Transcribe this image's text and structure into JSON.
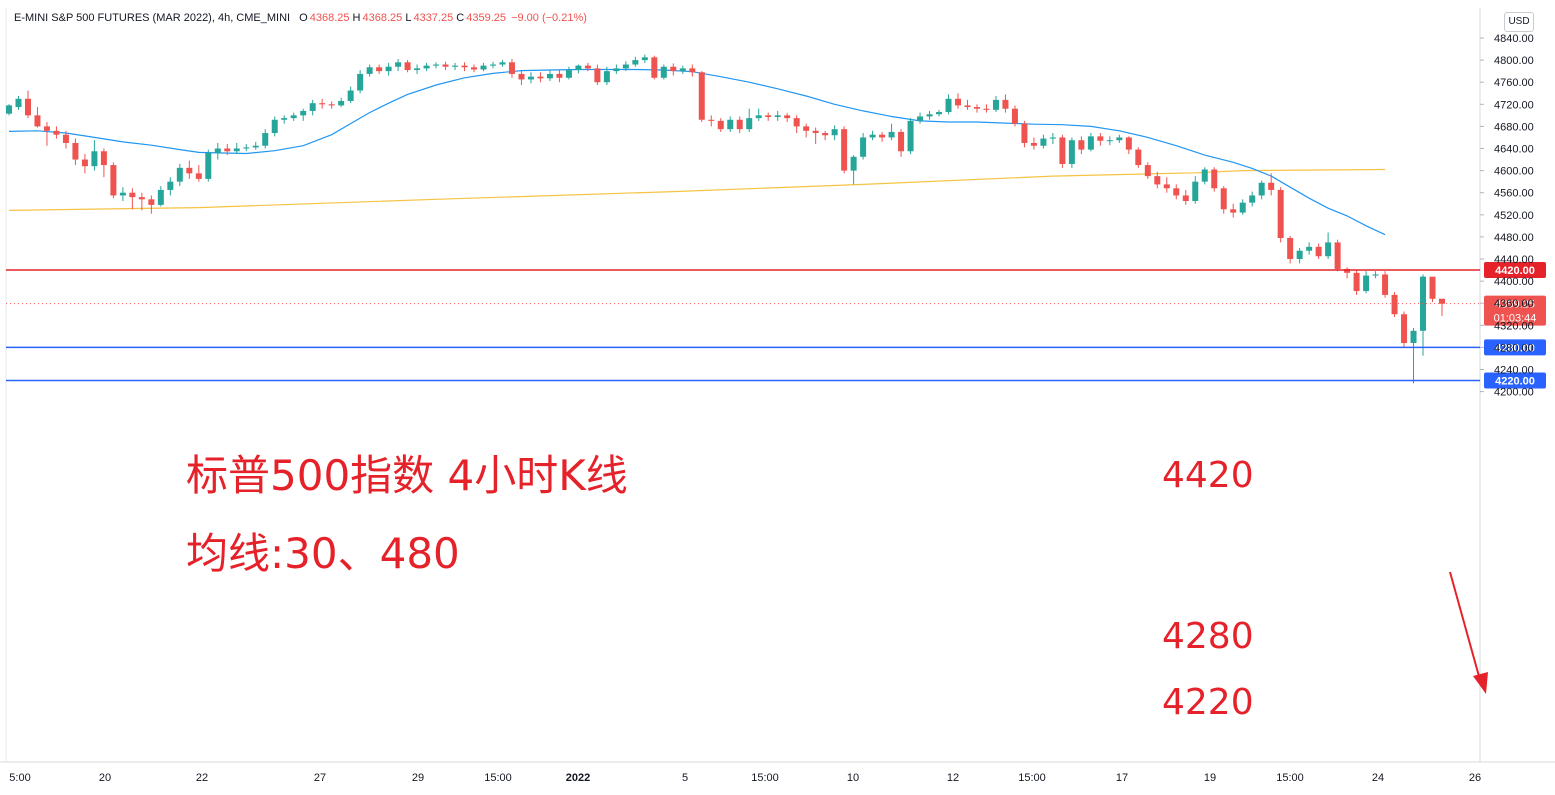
{
  "header": {
    "symbol": "E-MINI S&P 500 FUTURES (MAR 2022), 4h, CME_MINI",
    "open_label": "O",
    "open": "4368.25",
    "high_label": "H",
    "high": "4368.25",
    "low_label": "L",
    "low": "4337.25",
    "close_label": "C",
    "close": "4359.25",
    "change": "−9.00 (−0.21%)"
  },
  "currency_button": "USD",
  "annotations": {
    "title_line1": "标普500指数 4小时K线",
    "title_line2": "均线:30、480",
    "level_4420": "4420",
    "level_4280": "4280",
    "level_4220": "4220"
  },
  "colors": {
    "up": "#26a69a",
    "down": "#ef5350",
    "ma30": "#2196f3",
    "ma480": "#f5c342",
    "resistance_line": "#e5222a",
    "support_line": "#2962ff",
    "annotation_text": "#e5222a"
  },
  "chart_data": {
    "type": "candlestick",
    "title": "E-MINI S&P 500 FUTURES (MAR 2022), 4h, CME_MINI",
    "ylim": [
      4190,
      4850
    ],
    "y_ticks": [
      4200,
      4240,
      4280,
      4320,
      4360,
      4400,
      4440,
      4480,
      4520,
      4560,
      4600,
      4640,
      4680,
      4720,
      4760,
      4800,
      4840
    ],
    "x_ticks": [
      "5:00",
      "20",
      "22",
      "27",
      "29",
      "15:00",
      "2022",
      "5",
      "15:00",
      "10",
      "12",
      "15:00",
      "17",
      "19",
      "15:00",
      "24",
      "26"
    ],
    "last_price": "4359.25",
    "countdown": "01:03:44",
    "horizontal_levels": [
      {
        "value": 4420,
        "label": "4420.00",
        "kind": "resistance"
      },
      {
        "value": 4280,
        "label": "4280.00",
        "kind": "support"
      },
      {
        "value": 4220,
        "label": "4220.00",
        "kind": "support"
      }
    ],
    "candles": [
      [
        4703,
        4718,
        4700,
        4720
      ],
      [
        4715,
        4730,
        4710,
        4735
      ],
      [
        4730,
        4700,
        4695,
        4745
      ],
      [
        4700,
        4680,
        4678,
        4715
      ],
      [
        4680,
        4672,
        4645,
        4688
      ],
      [
        4672,
        4665,
        4658,
        4680
      ],
      [
        4665,
        4650,
        4640,
        4672
      ],
      [
        4650,
        4620,
        4610,
        4658
      ],
      [
        4620,
        4608,
        4595,
        4630
      ],
      [
        4608,
        4635,
        4600,
        4655
      ],
      [
        4635,
        4610,
        4588,
        4640
      ],
      [
        4610,
        4555,
        4550,
        4615
      ],
      [
        4555,
        4560,
        4545,
        4570
      ],
      [
        4560,
        4552,
        4530,
        4568
      ],
      [
        4552,
        4548,
        4528,
        4560
      ],
      [
        4548,
        4538,
        4522,
        4555
      ],
      [
        4538,
        4565,
        4535,
        4572
      ],
      [
        4565,
        4580,
        4555,
        4588
      ],
      [
        4580,
        4605,
        4572,
        4612
      ],
      [
        4605,
        4595,
        4585,
        4618
      ],
      [
        4595,
        4585,
        4580,
        4610
      ],
      [
        4585,
        4632,
        4580,
        4638
      ],
      [
        4632,
        4640,
        4620,
        4650
      ],
      [
        4640,
        4635,
        4628,
        4648
      ],
      [
        4635,
        4640,
        4630,
        4650
      ],
      [
        4640,
        4642,
        4635,
        4648
      ],
      [
        4642,
        4645,
        4638,
        4652
      ],
      [
        4645,
        4668,
        4640,
        4675
      ],
      [
        4668,
        4692,
        4662,
        4698
      ],
      [
        4692,
        4695,
        4685,
        4700
      ],
      [
        4695,
        4700,
        4690,
        4705
      ],
      [
        4700,
        4708,
        4690,
        4712
      ],
      [
        4708,
        4722,
        4700,
        4728
      ],
      [
        4722,
        4720,
        4712,
        4730
      ],
      [
        4720,
        4718,
        4712,
        4725
      ],
      [
        4718,
        4726,
        4715,
        4732
      ],
      [
        4726,
        4745,
        4722,
        4752
      ],
      [
        4745,
        4775,
        4740,
        4782
      ],
      [
        4775,
        4787,
        4770,
        4792
      ],
      [
        4787,
        4780,
        4775,
        4792
      ],
      [
        4780,
        4788,
        4772,
        4795
      ],
      [
        4788,
        4796,
        4780,
        4802
      ],
      [
        4796,
        4782,
        4778,
        4800
      ],
      [
        4782,
        4785,
        4775,
        4792
      ],
      [
        4785,
        4790,
        4780,
        4795
      ],
      [
        4790,
        4792,
        4785,
        4796
      ],
      [
        4792,
        4788,
        4782,
        4797
      ],
      [
        4788,
        4790,
        4782,
        4795
      ],
      [
        4790,
        4787,
        4780,
        4796
      ],
      [
        4787,
        4783,
        4778,
        4792
      ],
      [
        4783,
        4790,
        4780,
        4795
      ],
      [
        4790,
        4792,
        4785,
        4797
      ],
      [
        4792,
        4796,
        4788,
        4800
      ],
      [
        4796,
        4775,
        4768,
        4802
      ],
      [
        4775,
        4765,
        4755,
        4780
      ],
      [
        4765,
        4770,
        4758,
        4778
      ],
      [
        4770,
        4767,
        4760,
        4778
      ],
      [
        4767,
        4775,
        4762,
        4782
      ],
      [
        4775,
        4768,
        4760,
        4782
      ],
      [
        4768,
        4782,
        4765,
        4788
      ],
      [
        4782,
        4790,
        4776,
        4792
      ],
      [
        4790,
        4785,
        4780,
        4795
      ],
      [
        4785,
        4760,
        4755,
        4792
      ],
      [
        4760,
        4780,
        4755,
        4788
      ],
      [
        4780,
        4785,
        4775,
        4792
      ],
      [
        4785,
        4792,
        4780,
        4798
      ],
      [
        4792,
        4800,
        4788,
        4806
      ],
      [
        4800,
        4805,
        4795,
        4810
      ],
      [
        4805,
        4768,
        4765,
        4808
      ],
      [
        4768,
        4788,
        4765,
        4792
      ],
      [
        4788,
        4780,
        4772,
        4794
      ],
      [
        4780,
        4785,
        4775,
        4790
      ],
      [
        4785,
        4778,
        4770,
        4792
      ],
      [
        4778,
        4692,
        4688,
        4780
      ],
      [
        4692,
        4690,
        4680,
        4700
      ],
      [
        4690,
        4675,
        4670,
        4695
      ],
      [
        4675,
        4692,
        4670,
        4698
      ],
      [
        4692,
        4675,
        4668,
        4698
      ],
      [
        4675,
        4695,
        4670,
        4712
      ],
      [
        4695,
        4700,
        4690,
        4712
      ],
      [
        4700,
        4697,
        4690,
        4705
      ],
      [
        4697,
        4700,
        4690,
        4708
      ],
      [
        4700,
        4695,
        4688,
        4704
      ],
      [
        4695,
        4680,
        4668,
        4700
      ],
      [
        4680,
        4672,
        4660,
        4685
      ],
      [
        4672,
        4668,
        4648,
        4678
      ],
      [
        4668,
        4664,
        4655,
        4672
      ],
      [
        4664,
        4675,
        4655,
        4682
      ],
      [
        4675,
        4600,
        4595,
        4680
      ],
      [
        4600,
        4625,
        4575,
        4628
      ],
      [
        4625,
        4660,
        4620,
        4668
      ],
      [
        4660,
        4665,
        4655,
        4672
      ],
      [
        4665,
        4660,
        4652,
        4670
      ],
      [
        4660,
        4670,
        4655,
        4685
      ],
      [
        4670,
        4635,
        4625,
        4675
      ],
      [
        4635,
        4690,
        4630,
        4695
      ],
      [
        4690,
        4698,
        4685,
        4705
      ],
      [
        4698,
        4702,
        4692,
        4708
      ],
      [
        4702,
        4706,
        4698,
        4710
      ],
      [
        4706,
        4730,
        4702,
        4738
      ],
      [
        4730,
        4718,
        4712,
        4740
      ],
      [
        4718,
        4715,
        4710,
        4728
      ],
      [
        4715,
        4712,
        4705,
        4720
      ],
      [
        4712,
        4710,
        4705,
        4720
      ],
      [
        4710,
        4728,
        4706,
        4735
      ],
      [
        4728,
        4712,
        4705,
        4738
      ],
      [
        4712,
        4685,
        4680,
        4718
      ],
      [
        4685,
        4650,
        4642,
        4690
      ],
      [
        4650,
        4645,
        4638,
        4660
      ],
      [
        4645,
        4658,
        4640,
        4665
      ],
      [
        4658,
        4660,
        4648,
        4668
      ],
      [
        4660,
        4612,
        4605,
        4665
      ],
      [
        4612,
        4655,
        4605,
        4660
      ],
      [
        4655,
        4638,
        4630,
        4662
      ],
      [
        4638,
        4662,
        4635,
        4668
      ],
      [
        4662,
        4654,
        4645,
        4668
      ],
      [
        4654,
        4655,
        4646,
        4662
      ],
      [
        4655,
        4660,
        4650,
        4665
      ],
      [
        4660,
        4638,
        4630,
        4662
      ],
      [
        4638,
        4610,
        4605,
        4642
      ],
      [
        4610,
        4590,
        4585,
        4615
      ],
      [
        4590,
        4575,
        4568,
        4598
      ],
      [
        4575,
        4568,
        4560,
        4588
      ],
      [
        4568,
        4555,
        4548,
        4575
      ],
      [
        4555,
        4545,
        4538,
        4565
      ],
      [
        4545,
        4580,
        4540,
        4590
      ],
      [
        4580,
        4602,
        4575,
        4606
      ],
      [
        4602,
        4568,
        4562,
        4606
      ],
      [
        4568,
        4530,
        4522,
        4572
      ],
      [
        4530,
        4524,
        4515,
        4540
      ],
      [
        4524,
        4542,
        4520,
        4548
      ],
      [
        4542,
        4555,
        4535,
        4562
      ],
      [
        4555,
        4578,
        4548,
        4582
      ],
      [
        4578,
        4565,
        4555,
        4595
      ],
      [
        4565,
        4478,
        4470,
        4570
      ],
      [
        4478,
        4440,
        4432,
        4482
      ],
      [
        4440,
        4455,
        4432,
        4460
      ],
      [
        4455,
        4462,
        4448,
        4470
      ],
      [
        4462,
        4445,
        4440,
        4468
      ],
      [
        4445,
        4470,
        4440,
        4488
      ],
      [
        4470,
        4422,
        4418,
        4475
      ],
      [
        4422,
        4415,
        4405,
        4425
      ],
      [
        4415,
        4382,
        4375,
        4420
      ],
      [
        4382,
        4410,
        4378,
        4418
      ],
      [
        4410,
        4412,
        4405,
        4418
      ],
      [
        4412,
        4375,
        4370,
        4418
      ],
      [
        4375,
        4340,
        4335,
        4380
      ],
      [
        4340,
        4288,
        4280,
        4345
      ],
      [
        4288,
        4310,
        4215,
        4315
      ],
      [
        4310,
        4408,
        4265,
        4412
      ],
      [
        4408,
        4368,
        4362,
        4405
      ],
      [
        4368,
        4359,
        4337,
        4368
      ]
    ],
    "ma30": [
      [
        0,
        4671
      ],
      [
        3,
        4672
      ],
      [
        6,
        4668
      ],
      [
        9,
        4660
      ],
      [
        12,
        4652
      ],
      [
        15,
        4646
      ],
      [
        18,
        4638
      ],
      [
        20,
        4633
      ],
      [
        22,
        4632
      ],
      [
        25,
        4631
      ],
      [
        28,
        4636
      ],
      [
        31,
        4645
      ],
      [
        34,
        4665
      ],
      [
        36,
        4685
      ],
      [
        38,
        4705
      ],
      [
        40,
        4722
      ],
      [
        42,
        4738
      ],
      [
        45,
        4755
      ],
      [
        48,
        4768
      ],
      [
        51,
        4776
      ],
      [
        54,
        4781
      ],
      [
        57,
        4782
      ],
      [
        60,
        4783
      ],
      [
        63,
        4783
      ],
      [
        66,
        4783
      ],
      [
        69,
        4782
      ],
      [
        72,
        4779
      ],
      [
        75,
        4770
      ],
      [
        78,
        4760
      ],
      [
        81,
        4748
      ],
      [
        84,
        4735
      ],
      [
        87,
        4720
      ],
      [
        90,
        4708
      ],
      [
        93,
        4698
      ],
      [
        96,
        4690
      ],
      [
        99,
        4688
      ],
      [
        102,
        4688
      ],
      [
        105,
        4686
      ],
      [
        108,
        4684
      ],
      [
        111,
        4683
      ],
      [
        114,
        4680
      ],
      [
        117,
        4672
      ],
      [
        120,
        4660
      ],
      [
        123,
        4645
      ],
      [
        126,
        4628
      ],
      [
        129,
        4615
      ],
      [
        131,
        4604
      ],
      [
        133,
        4590
      ],
      [
        135,
        4570
      ],
      [
        137,
        4550
      ],
      [
        139,
        4532
      ],
      [
        141,
        4518
      ],
      [
        143,
        4500
      ],
      [
        145,
        4484
      ]
    ],
    "ma480": [
      [
        0,
        4528
      ],
      [
        20,
        4533
      ],
      [
        45,
        4548
      ],
      [
        70,
        4562
      ],
      [
        90,
        4575
      ],
      [
        110,
        4590
      ],
      [
        125,
        4596
      ],
      [
        130,
        4600
      ],
      [
        145,
        4602
      ]
    ]
  }
}
